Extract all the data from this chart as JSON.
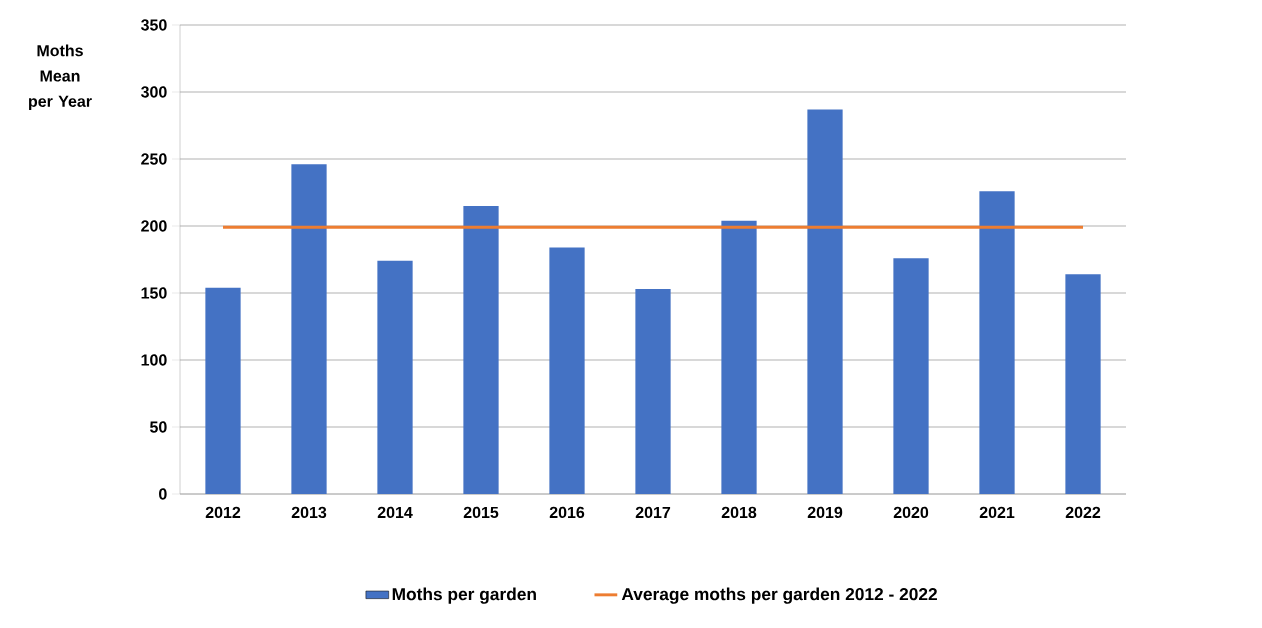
{
  "chart_data": {
    "type": "bar",
    "ylabel": "Moths Mean per Year",
    "categories": [
      "2012",
      "2013",
      "2014",
      "2015",
      "2016",
      "2017",
      "2018",
      "2019",
      "2020",
      "2021",
      "2022"
    ],
    "series": [
      {
        "name": "Moths per garden",
        "color": "#4472c4",
        "values": [
          154,
          246,
          174,
          215,
          184,
          153,
          204,
          287,
          176,
          226,
          164
        ]
      },
      {
        "name": "Average moths per garden 2012 - 2022",
        "type": "line",
        "color": "#ed7d31",
        "values": [
          199,
          199,
          199,
          199,
          199,
          199,
          199,
          199,
          199,
          199,
          199
        ]
      }
    ],
    "ylim": [
      0,
      350
    ],
    "yticks": [
      0,
      50,
      100,
      150,
      200,
      250,
      300,
      350
    ],
    "grid": "y",
    "legend": "bottom",
    "marker": "none"
  }
}
